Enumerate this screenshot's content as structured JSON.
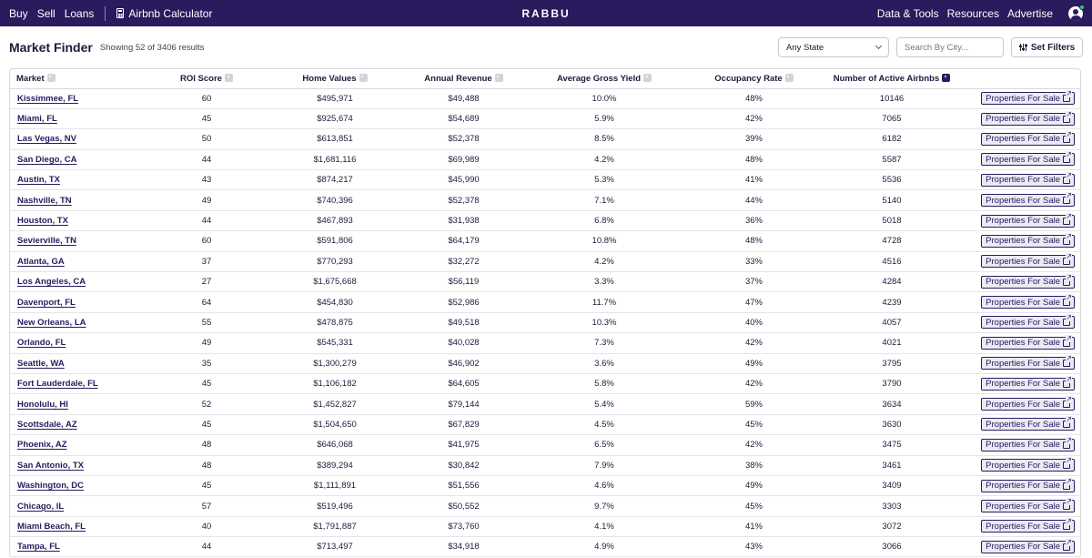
{
  "nav": {
    "buy": "Buy",
    "sell": "Sell",
    "loans": "Loans",
    "calculator": "Airbnb Calculator",
    "logo": "RABBU",
    "data_tools": "Data & Tools",
    "resources": "Resources",
    "advertise": "Advertise"
  },
  "header": {
    "title": "Market Finder",
    "results": "Showing 52 of 3406 results",
    "state_select": "Any State",
    "city_placeholder": "Search By City...",
    "filters_label": "Set Filters"
  },
  "table": {
    "columns": [
      "Market",
      "ROI Score",
      "Home Values",
      "Annual Revenue",
      "Average Gross Yield",
      "Occupancy Rate",
      "Number of Active Airbnbs"
    ],
    "action_label": "Properties For Sale",
    "rows": [
      [
        "Kissimmee, FL",
        "60",
        "$495,971",
        "$49,488",
        "10.0%",
        "48%",
        "10146"
      ],
      [
        "Miami, FL",
        "45",
        "$925,674",
        "$54,689",
        "5.9%",
        "42%",
        "7065"
      ],
      [
        "Las Vegas, NV",
        "50",
        "$613,851",
        "$52,378",
        "8.5%",
        "39%",
        "6182"
      ],
      [
        "San Diego, CA",
        "44",
        "$1,681,116",
        "$69,989",
        "4.2%",
        "48%",
        "5587"
      ],
      [
        "Austin, TX",
        "43",
        "$874,217",
        "$45,990",
        "5.3%",
        "41%",
        "5536"
      ],
      [
        "Nashville, TN",
        "49",
        "$740,396",
        "$52,378",
        "7.1%",
        "44%",
        "5140"
      ],
      [
        "Houston, TX",
        "44",
        "$467,893",
        "$31,938",
        "6.8%",
        "36%",
        "5018"
      ],
      [
        "Sevierville, TN",
        "60",
        "$591,806",
        "$64,179",
        "10.8%",
        "48%",
        "4728"
      ],
      [
        "Atlanta, GA",
        "37",
        "$770,293",
        "$32,272",
        "4.2%",
        "33%",
        "4516"
      ],
      [
        "Los Angeles, CA",
        "27",
        "$1,675,668",
        "$56,119",
        "3.3%",
        "37%",
        "4284"
      ],
      [
        "Davenport, FL",
        "64",
        "$454,830",
        "$52,986",
        "11.7%",
        "47%",
        "4239"
      ],
      [
        "New Orleans, LA",
        "55",
        "$478,875",
        "$49,518",
        "10.3%",
        "40%",
        "4057"
      ],
      [
        "Orlando, FL",
        "49",
        "$545,331",
        "$40,028",
        "7.3%",
        "42%",
        "4021"
      ],
      [
        "Seattle, WA",
        "35",
        "$1,300,279",
        "$46,902",
        "3.6%",
        "49%",
        "3795"
      ],
      [
        "Fort Lauderdale, FL",
        "45",
        "$1,106,182",
        "$64,605",
        "5.8%",
        "42%",
        "3790"
      ],
      [
        "Honolulu, HI",
        "52",
        "$1,452,827",
        "$79,144",
        "5.4%",
        "59%",
        "3634"
      ],
      [
        "Scottsdale, AZ",
        "45",
        "$1,504,650",
        "$67,829",
        "4.5%",
        "45%",
        "3630"
      ],
      [
        "Phoenix, AZ",
        "48",
        "$646,068",
        "$41,975",
        "6.5%",
        "42%",
        "3475"
      ],
      [
        "San Antonio, TX",
        "48",
        "$389,294",
        "$30,842",
        "7.9%",
        "38%",
        "3461"
      ],
      [
        "Washington, DC",
        "45",
        "$1,111,891",
        "$51,556",
        "4.6%",
        "49%",
        "3409"
      ],
      [
        "Chicago, IL",
        "57",
        "$519,496",
        "$50,552",
        "9.7%",
        "45%",
        "3303"
      ],
      [
        "Miami Beach, FL",
        "40",
        "$1,791,887",
        "$73,760",
        "4.1%",
        "41%",
        "3072"
      ],
      [
        "Tampa, FL",
        "44",
        "$713,497",
        "$34,918",
        "4.9%",
        "43%",
        "3066"
      ]
    ]
  },
  "colors": {
    "brand": "#2a1a5e",
    "button_bg": "#ebe9f3",
    "online_dot": "#2ec27e"
  }
}
